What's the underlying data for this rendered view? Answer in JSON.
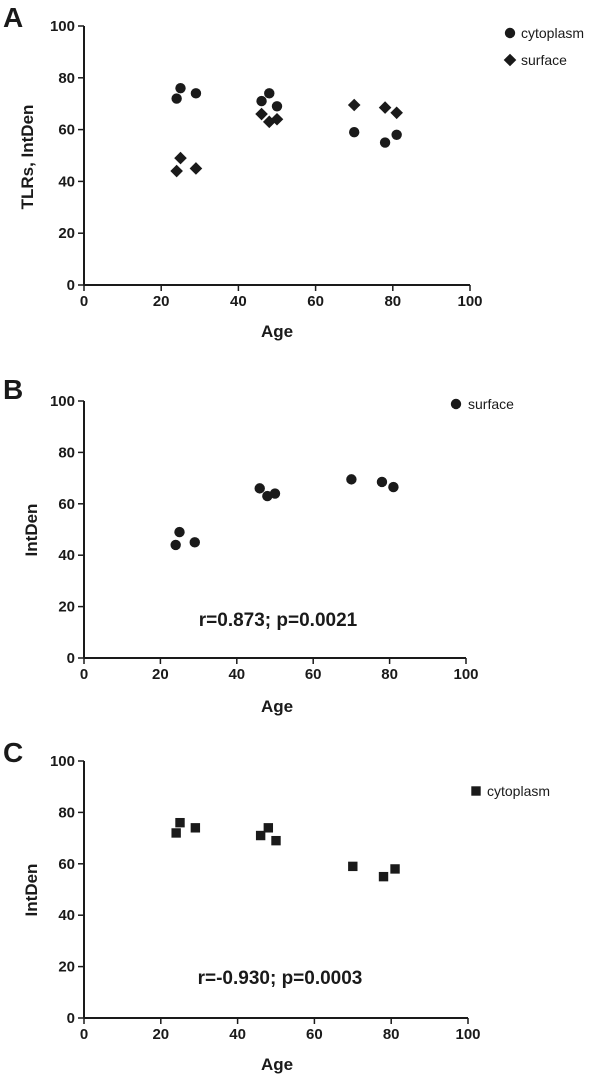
{
  "chart_data": [
    {
      "type": "scatter",
      "panel": "A",
      "xlabel": "Age",
      "ylabel": "TLRs, IntDen",
      "xlim": [
        0,
        100
      ],
      "ylim": [
        0,
        100
      ],
      "x_ticks": [
        "0",
        "20",
        "40",
        "60",
        "80",
        "100"
      ],
      "y_ticks": [
        "0",
        "20",
        "40",
        "60",
        "80",
        "100"
      ],
      "grid": false,
      "legend_position": "top-right",
      "series": [
        {
          "name": "cytoplasm",
          "marker": "circle",
          "points": [
            {
              "x": 24,
              "y": 72
            },
            {
              "x": 25,
              "y": 76
            },
            {
              "x": 29,
              "y": 74
            },
            {
              "x": 46,
              "y": 71
            },
            {
              "x": 48,
              "y": 74
            },
            {
              "x": 50,
              "y": 69
            },
            {
              "x": 70,
              "y": 59
            },
            {
              "x": 78,
              "y": 55
            },
            {
              "x": 81,
              "y": 58
            }
          ]
        },
        {
          "name": "surface",
          "marker": "diamond",
          "points": [
            {
              "x": 24,
              "y": 44
            },
            {
              "x": 25,
              "y": 49
            },
            {
              "x": 29,
              "y": 45
            },
            {
              "x": 46,
              "y": 66
            },
            {
              "x": 48,
              "y": 63
            },
            {
              "x": 50,
              "y": 64
            },
            {
              "x": 70,
              "y": 69.5
            },
            {
              "x": 78,
              "y": 68.5
            },
            {
              "x": 81,
              "y": 66.5
            }
          ]
        }
      ]
    },
    {
      "type": "scatter",
      "panel": "B",
      "xlabel": "Age",
      "ylabel": "IntDen",
      "xlim": [
        0,
        100
      ],
      "ylim": [
        0,
        100
      ],
      "x_ticks": [
        "0",
        "20",
        "40",
        "60",
        "80",
        "100"
      ],
      "y_ticks": [
        "0",
        "20",
        "40",
        "60",
        "80",
        "100"
      ],
      "grid": false,
      "legend_position": "top-right",
      "annotation": "r=0.873; p=0.0021",
      "series": [
        {
          "name": "surface",
          "marker": "circle",
          "points": [
            {
              "x": 24,
              "y": 44
            },
            {
              "x": 25,
              "y": 49
            },
            {
              "x": 29,
              "y": 45
            },
            {
              "x": 46,
              "y": 66
            },
            {
              "x": 48,
              "y": 63
            },
            {
              "x": 50,
              "y": 64
            },
            {
              "x": 70,
              "y": 69.5
            },
            {
              "x": 78,
              "y": 68.5
            },
            {
              "x": 81,
              "y": 66.5
            }
          ]
        }
      ]
    },
    {
      "type": "scatter",
      "panel": "C",
      "xlabel": "Age",
      "ylabel": "IntDen",
      "xlim": [
        0,
        100
      ],
      "ylim": [
        0,
        100
      ],
      "x_ticks": [
        "0",
        "20",
        "40",
        "60",
        "80",
        "100"
      ],
      "y_ticks": [
        "0",
        "20",
        "40",
        "60",
        "80",
        "100"
      ],
      "grid": false,
      "legend_position": "top-right",
      "annotation": "r=-0.930; p=0.0003",
      "series": [
        {
          "name": "cytoplasm",
          "marker": "square",
          "points": [
            {
              "x": 24,
              "y": 72
            },
            {
              "x": 25,
              "y": 76
            },
            {
              "x": 29,
              "y": 74
            },
            {
              "x": 46,
              "y": 71
            },
            {
              "x": 48,
              "y": 74
            },
            {
              "x": 50,
              "y": 69
            },
            {
              "x": 70,
              "y": 59
            },
            {
              "x": 78,
              "y": 55
            },
            {
              "x": 81,
              "y": 58
            }
          ]
        }
      ]
    }
  ]
}
